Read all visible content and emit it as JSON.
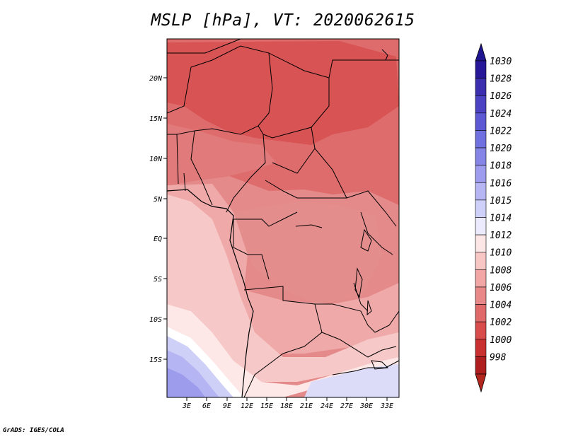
{
  "title": "MSLP [hPa], VT: 2020062615",
  "footer": "GrADS: IGES/COLA",
  "lat_labels": [
    "20N",
    "15N",
    "10N",
    "5N",
    "EQ",
    "5S",
    "10S",
    "15S"
  ],
  "lon_labels": [
    "3E",
    "6E",
    "9E",
    "12E",
    "15E",
    "18E",
    "21E",
    "24E",
    "27E",
    "30E",
    "33E"
  ],
  "colorbar": {
    "levels": [
      "1030",
      "1028",
      "1026",
      "1024",
      "1022",
      "1020",
      "1018",
      "1016",
      "1015",
      "1014",
      "1012",
      "1010",
      "1008",
      "1006",
      "1004",
      "1002",
      "1000",
      "998"
    ],
    "colors": [
      "#27189a",
      "#3b2fb0",
      "#4c43c4",
      "#5d58d4",
      "#7070e0",
      "#8585e8",
      "#9d9cef",
      "#b6b6f4",
      "#cfd0f9",
      "#ebebfd",
      "#fde6e6",
      "#f9c6c6",
      "#f3a6a6",
      "#e98888",
      "#e06a6a",
      "#d84c4c",
      "#c93030",
      "#ae1e1e"
    ],
    "top_color": "#201590",
    "bottom_color": "#b3261e"
  }
}
